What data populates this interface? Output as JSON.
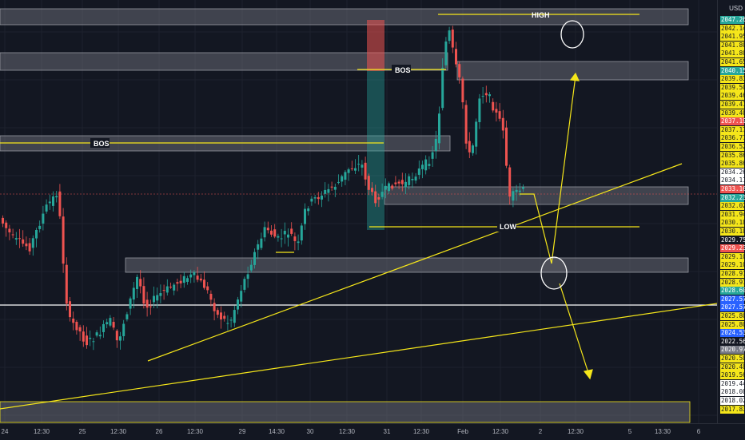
{
  "price_scale": {
    "currency": "USD",
    "labels": [
      {
        "text": "2047.269",
        "bg": "#26a69a",
        "fg": "#ffffff"
      },
      {
        "text": "2042.140",
        "bg": "#f5e61a",
        "fg": "#131722"
      },
      {
        "text": "2041.950",
        "bg": "#f5e61a",
        "fg": "#131722"
      },
      {
        "text": "2041.806",
        "bg": "#f5e61a",
        "fg": "#131722"
      },
      {
        "text": "2041.806",
        "bg": "#f5e61a",
        "fg": "#131722"
      },
      {
        "text": "2041.650",
        "bg": "#f5e61a",
        "fg": "#131722"
      },
      {
        "text": "2040.157",
        "bg": "#26a69a",
        "fg": "#ffffff"
      },
      {
        "text": "2039.839",
        "bg": "#f5e61a",
        "fg": "#131722"
      },
      {
        "text": "2039.504",
        "bg": "#f5e61a",
        "fg": "#131722"
      },
      {
        "text": "2039.461",
        "bg": "#f5e61a",
        "fg": "#131722"
      },
      {
        "text": "2039.412",
        "bg": "#f5e61a",
        "fg": "#131722"
      },
      {
        "text": "2039.404",
        "bg": "#f5e61a",
        "fg": "#131722"
      },
      {
        "text": "2037.193",
        "bg": "#ef5350",
        "fg": "#ffffff"
      },
      {
        "text": "2037.174",
        "bg": "#f5e61a",
        "fg": "#131722"
      },
      {
        "text": "2036.770",
        "bg": "#f5e61a",
        "fg": "#131722"
      },
      {
        "text": "2036.520",
        "bg": "#f5e61a",
        "fg": "#131722"
      },
      {
        "text": "2035.865",
        "bg": "#f5e61a",
        "fg": "#131722"
      },
      {
        "text": "2035.865",
        "bg": "#f5e61a",
        "fg": "#131722"
      },
      {
        "text": "2034.262",
        "bg": "#ffffff",
        "fg": "#131722"
      },
      {
        "text": "2034.111",
        "bg": "#ffffff",
        "fg": "#131722"
      },
      {
        "text": "2033.165",
        "bg": "#ef5350",
        "fg": "#ffffff"
      },
      {
        "text": "2032.232",
        "bg": "#26a69a",
        "fg": "#ffffff"
      },
      {
        "text": "2032.024",
        "bg": "#f5e61a",
        "fg": "#131722"
      },
      {
        "text": "2031.949",
        "bg": "#f5e61a",
        "fg": "#131722"
      },
      {
        "text": "2030.184",
        "bg": "#f5e61a",
        "fg": "#131722"
      },
      {
        "text": "2030.184",
        "bg": "#f5e61a",
        "fg": "#131722"
      },
      {
        "text": "2029.759",
        "bg": "#131722",
        "fg": "#ffffff"
      },
      {
        "text": "2029.239",
        "bg": "#ef5350",
        "fg": "#ffffff"
      },
      {
        "text": "2029.105",
        "bg": "#f5e61a",
        "fg": "#131722"
      },
      {
        "text": "2029.105",
        "bg": "#f5e61a",
        "fg": "#131722"
      },
      {
        "text": "2028.910",
        "bg": "#f5e61a",
        "fg": "#131722"
      },
      {
        "text": "2028.910",
        "bg": "#f5e61a",
        "fg": "#131722"
      },
      {
        "text": "2028.607",
        "bg": "#26a69a",
        "fg": "#ffffff"
      },
      {
        "text": "2027.571",
        "bg": "#2962ff",
        "fg": "#ffffff"
      },
      {
        "text": "2027.571",
        "bg": "#2962ff",
        "fg": "#ffffff"
      },
      {
        "text": "2025.802",
        "bg": "#f5e61a",
        "fg": "#131722"
      },
      {
        "text": "2025.802",
        "bg": "#f5e61a",
        "fg": "#131722"
      },
      {
        "text": "2024.535",
        "bg": "#2962ff",
        "fg": "#ffffff"
      },
      {
        "text": "2022.560",
        "bg": "#131722",
        "fg": "#ffffff"
      },
      {
        "text": "2020.979",
        "bg": "#787b86",
        "fg": "#ffffff"
      },
      {
        "text": "2020.583",
        "bg": "#f5e61a",
        "fg": "#131722"
      },
      {
        "text": "2020.489",
        "bg": "#f5e61a",
        "fg": "#131722"
      },
      {
        "text": "2019.566",
        "bg": "#f5e61a",
        "fg": "#131722"
      },
      {
        "text": "2019.442",
        "bg": "#ffffff",
        "fg": "#131722"
      },
      {
        "text": "2018.089",
        "bg": "#ffffff",
        "fg": "#131722"
      },
      {
        "text": "2018.024",
        "bg": "#ffffff",
        "fg": "#131722"
      },
      {
        "text": "2017.835",
        "bg": "#f5e61a",
        "fg": "#131722"
      }
    ]
  },
  "time_axis": {
    "labels": [
      "24",
      "12:30",
      "25",
      "12:30",
      "26",
      "12:30",
      "29",
      "14:30",
      "30",
      "12:30",
      "31",
      "12:30",
      "Feb",
      "12:30",
      "2",
      "12:30",
      "5",
      "13:30",
      "6"
    ]
  },
  "annotations": {
    "high": "HIGH",
    "bos_upper": "BOS",
    "bos_left": "BOS",
    "low": "LOW"
  },
  "colors": {
    "background": "#131722",
    "bull": "#26a69a",
    "bear": "#ef5350",
    "drawing": "#f5e61a",
    "zone": "#787b86"
  }
}
